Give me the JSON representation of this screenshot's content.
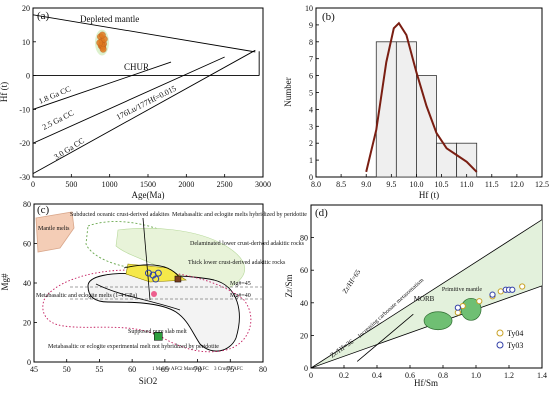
{
  "chart_data": [
    {
      "panel": "(a)",
      "type": "scatter",
      "xlabel": "Age(Ma)",
      "ylabel": "Hf (t)",
      "xlim": [
        0,
        3000
      ],
      "ylim": [
        -30,
        20
      ],
      "xticks": [
        "0",
        "500",
        "1000",
        "1500",
        "2000",
        "2500",
        "3000"
      ],
      "yticks": [
        "-30",
        "-20",
        "-10",
        "0",
        "10",
        "20"
      ],
      "reference_lines": [
        {
          "name": "Depleted mantle",
          "points": [
            [
              0,
              18
            ],
            [
              2900,
              7
            ]
          ]
        },
        {
          "name": "CHUR",
          "points": [
            [
              0,
              0
            ],
            [
              2950,
              0
            ]
          ]
        },
        {
          "name": "1.8 Ga CC",
          "points": [
            [
              0,
              -10
            ],
            [
              1800,
              4
            ]
          ]
        },
        {
          "name": "2.5 Ga CC",
          "points": [
            [
              0,
              -20
            ],
            [
              2500,
              5.5
            ]
          ]
        },
        {
          "name": "3.0 Ga CC",
          "points": [
            [
              0,
              -29
            ],
            [
              2900,
              7.5
            ]
          ]
        }
      ],
      "labels": [
        "Depleted mantle",
        "CHUR",
        "1.8 Ga CC",
        "2.5 Ga CC",
        "3.0 Ga CC",
        "176Lu/177Hf=0.015"
      ],
      "points": [
        {
          "x": 880,
          "y": 11.5
        },
        {
          "x": 900,
          "y": 10.2
        },
        {
          "x": 920,
          "y": 9.4
        },
        {
          "x": 890,
          "y": 8.8
        },
        {
          "x": 910,
          "y": 8.4
        },
        {
          "x": 900,
          "y": 9.0
        },
        {
          "x": 930,
          "y": 10.8
        },
        {
          "x": 870,
          "y": 9.7
        },
        {
          "x": 905,
          "y": 12.0
        },
        {
          "x": 915,
          "y": 7.8
        }
      ]
    },
    {
      "panel": "(b)",
      "type": "bar",
      "xlabel": "Hf (t)",
      "ylabel": "Number",
      "xlim": [
        8.0,
        12.5
      ],
      "ylim": [
        0,
        10
      ],
      "xticks": [
        "8.0",
        "8.5",
        "9.0",
        "9.5",
        "10.0",
        "10.5",
        "11.0",
        "11.5",
        "12.0",
        "12.5"
      ],
      "yticks": [
        "0",
        "1",
        "2",
        "3",
        "4",
        "5",
        "6",
        "7",
        "8",
        "9",
        "10"
      ],
      "bins": [
        {
          "from": 9.2,
          "to": 9.6,
          "value": 8
        },
        {
          "from": 9.6,
          "to": 10.0,
          "value": 8
        },
        {
          "from": 10.0,
          "to": 10.4,
          "value": 6
        },
        {
          "from": 10.4,
          "to": 10.8,
          "value": 2
        },
        {
          "from": 10.8,
          "to": 11.2,
          "value": 2
        }
      ],
      "density_curve": [
        [
          9.0,
          0.3
        ],
        [
          9.2,
          2.8
        ],
        [
          9.4,
          6.8
        ],
        [
          9.55,
          8.8
        ],
        [
          9.65,
          9.1
        ],
        [
          9.8,
          8.4
        ],
        [
          10.0,
          6.2
        ],
        [
          10.2,
          4.2
        ],
        [
          10.4,
          2.6
        ],
        [
          10.6,
          1.7
        ],
        [
          10.8,
          1.3
        ],
        [
          11.0,
          0.9
        ],
        [
          11.2,
          0.3
        ]
      ]
    },
    {
      "panel": "(c)",
      "type": "scatter",
      "xlabel": "SiO2",
      "ylabel": "Mg#",
      "xlim": [
        45,
        80
      ],
      "ylim": [
        0,
        80
      ],
      "xticks": [
        "45",
        "50",
        "55",
        "60",
        "65",
        "70",
        "75",
        "80"
      ],
      "yticks": [
        "0",
        "20",
        "40",
        "60",
        "80"
      ],
      "labels": [
        "Subducted oceanic crust-derived adakites",
        "Metabasaltic and eclogite melts hybridized by peridotite",
        "Mantle melts",
        "Delaminated lower crust-derived adakitic rocks",
        "Thick lower crust-derived adakitic rocks",
        "Metabasaltic and eclogite melts (1-4 GPa)",
        "Supposed pure slab melt",
        "Metabasaltic or eclogite experimental melt not hybridized by peridotite",
        "1 Mantle AFC",
        "2 Mantle AFC",
        "3 Crustal AFC",
        "Mg#=45",
        "Mg#=40"
      ],
      "points": [
        {
          "x": 62.5,
          "y": 45
        },
        {
          "x": 63.2,
          "y": 44
        },
        {
          "x": 64.0,
          "y": 45
        },
        {
          "x": 63.6,
          "y": 42
        }
      ],
      "experimental_points": [
        {
          "x": 67,
          "y": 42
        },
        {
          "x": 64,
          "y": 13
        }
      ]
    },
    {
      "panel": "(d)",
      "type": "scatter",
      "xlabel": "Hf/Sm",
      "ylabel": "Zr/Sm",
      "xlim": [
        0,
        1.4
      ],
      "ylim": [
        0,
        100
      ],
      "xticks": [
        "0",
        "0.2",
        "0.4",
        "0.6",
        "0.8",
        "1.0",
        "1.2",
        "1.4"
      ],
      "yticks": [
        "0",
        "20",
        "40",
        "60",
        "80"
      ],
      "labels": [
        "Zr/Hf=65",
        "Zr/Hf=36",
        "MORB",
        "Primitive mantle",
        "Increasing carbonate metasomatism"
      ],
      "series": [
        {
          "name": "Ty04",
          "points": [
            [
              0.89,
              34
            ],
            [
              0.92,
              38
            ],
            [
              1.02,
              41
            ],
            [
              1.1,
              44
            ],
            [
              1.15,
              47
            ],
            [
              1.28,
              50
            ]
          ]
        },
        {
          "name": "Ty03",
          "points": [
            [
              0.89,
              37
            ],
            [
              1.1,
              45
            ],
            [
              1.18,
              48
            ],
            [
              1.2,
              48
            ],
            [
              1.22,
              48
            ]
          ]
        }
      ]
    }
  ]
}
